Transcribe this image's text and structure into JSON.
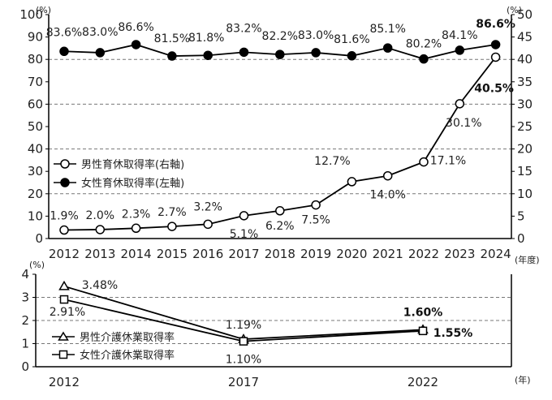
{
  "chart_data": [
    {
      "type": "line",
      "x": [
        2012,
        2013,
        2014,
        2015,
        2016,
        2017,
        2018,
        2019,
        2020,
        2021,
        2022,
        2023,
        2024
      ],
      "x_unit": "(年度)",
      "y_left_unit": "(%)",
      "y_right_unit": "(%)",
      "y_left_ticks": [
        "0",
        "10",
        "20",
        "30",
        "40",
        "50",
        "60",
        "70",
        "80",
        "90",
        "100"
      ],
      "y_right_ticks": [
        "0",
        "5",
        "10",
        "15",
        "20",
        "25",
        "30",
        "35",
        "40",
        "45",
        "50"
      ],
      "ylim_left": [
        0,
        100
      ],
      "ylim_right": [
        0,
        50
      ],
      "grid": true,
      "legend_position": "middle-left",
      "series": [
        {
          "name": "男性育休取得率(右軸)",
          "axis": "right",
          "marker": "open-circle",
          "values": [
            1.9,
            2.0,
            2.3,
            2.7,
            3.2,
            5.1,
            6.2,
            7.5,
            12.7,
            14.0,
            17.1,
            30.1,
            40.5
          ],
          "labels": [
            "1.9%",
            "2.0%",
            "2.3%",
            "2.7%",
            "3.2%",
            "5.1%",
            "6.2%",
            "7.5%",
            "12.7%",
            "14.0%",
            "17.1%",
            "30.1%",
            "40.5%"
          ]
        },
        {
          "name": "女性育休取得率(左軸)",
          "axis": "left",
          "marker": "filled-circle",
          "values": [
            83.6,
            83.0,
            86.6,
            81.5,
            81.8,
            83.2,
            82.2,
            83.0,
            81.6,
            85.1,
            80.2,
            84.1,
            86.6
          ],
          "labels": [
            "83.6%",
            "83.0%",
            "86.6%",
            "81.5%",
            "81.8%",
            "83.2%",
            "82.2%",
            "83.0%",
            "81.6%",
            "85.1%",
            "80.2%",
            "84.1%",
            "86.6%"
          ]
        }
      ]
    },
    {
      "type": "line",
      "x": [
        2012,
        2017,
        2022
      ],
      "x_tick_labels": [
        "2012",
        "2017",
        "2022"
      ],
      "x_unit": "(年)",
      "y_unit": "(%)",
      "y_ticks": [
        "0",
        "1",
        "2",
        "3",
        "4"
      ],
      "ylim": [
        0,
        4
      ],
      "grid": true,
      "legend_position": "bottom-left",
      "series": [
        {
          "name": "男性介護休業取得率",
          "marker": "open-triangle",
          "values": [
            3.48,
            1.19,
            1.6
          ],
          "labels": [
            "3.48%",
            "1.19%",
            "1.60%"
          ]
        },
        {
          "name": "女性介護休業取得率",
          "marker": "open-square",
          "values": [
            2.91,
            1.1,
            1.55
          ],
          "labels": [
            "2.91%",
            "1.10%",
            "1.55%"
          ]
        }
      ]
    }
  ]
}
